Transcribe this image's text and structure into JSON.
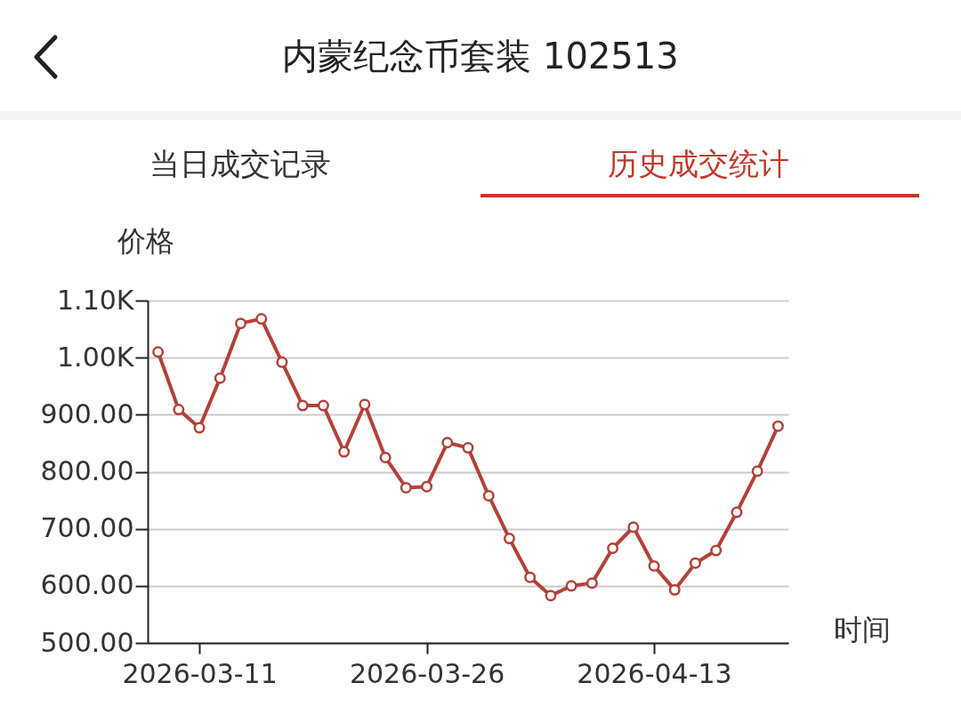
{
  "chart_data": {
    "type": "line",
    "title": "内蒙纪念币套装 102513",
    "annotations": [
      "当日成交记录",
      "历史成交统计"
    ],
    "xlabel": "时间",
    "ylabel": "价格",
    "categories": [
      null,
      null,
      "2026-03-11",
      null,
      null,
      null,
      null,
      null,
      null,
      null,
      null,
      null,
      null,
      "2026-03-26",
      null,
      null,
      null,
      null,
      null,
      null,
      null,
      null,
      null,
      null,
      "2026-04-13",
      null,
      null,
      null,
      null,
      null,
      null
    ],
    "series": [
      {
        "color": "#b3413a",
        "values": [
          1010,
          909,
          877,
          964,
          1060,
          1068,
          992,
          916,
          916,
          835,
          918,
          825,
          772,
          774,
          851,
          842,
          758,
          683,
          615,
          583,
          600,
          605,
          666,
          703,
          635,
          593,
          640,
          662,
          729,
          801,
          880
        ]
      }
    ],
    "ylim": [
      500,
      1100
    ],
    "yticks": [
      {
        "value": 500,
        "label": "500.00"
      },
      {
        "value": 600,
        "label": "600.00"
      },
      {
        "value": 700,
        "label": "700.00"
      },
      {
        "value": 800,
        "label": "800.00"
      },
      {
        "value": 900,
        "label": "900.00"
      },
      {
        "value": 1000,
        "label": "1.00K"
      },
      {
        "value": 1100,
        "label": "1.10K"
      }
    ],
    "grid": "y",
    "marker": "circle",
    "line_style": "solid"
  }
}
